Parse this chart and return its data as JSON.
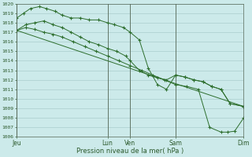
{
  "title": "Pression niveau de la mer( hPa )",
  "bg_color": "#cceaea",
  "grid_color": "#aacccc",
  "line_color": "#2d6e2d",
  "ylim": [
    1006,
    1020
  ],
  "yticks": [
    1006,
    1007,
    1008,
    1009,
    1010,
    1011,
    1012,
    1013,
    1014,
    1015,
    1016,
    1017,
    1018,
    1019,
    1020
  ],
  "x_day_labels": [
    {
      "label": "Jeu",
      "x": 0.0
    },
    {
      "label": "Lun",
      "x": 4.0
    },
    {
      "label": "Ven",
      "x": 5.0
    },
    {
      "label": "Sam",
      "x": 7.0
    },
    {
      "label": "Dim",
      "x": 10.0
    }
  ],
  "vlines": [
    0.0,
    4.0,
    5.0,
    7.0,
    10.0
  ],
  "line1": {
    "x": [
      0.0,
      0.3,
      0.6,
      1.0,
      1.3,
      1.7,
      2.0,
      2.4,
      2.8,
      3.2,
      3.6,
      4.0,
      4.3,
      4.7,
      5.0,
      5.4,
      5.8,
      6.2,
      6.6,
      7.0,
      7.4,
      7.8,
      8.2,
      8.6,
      9.0,
      9.4,
      10.0
    ],
    "y": [
      1018.5,
      1019.0,
      1019.5,
      1019.7,
      1019.5,
      1019.2,
      1018.8,
      1018.5,
      1018.5,
      1018.3,
      1018.3,
      1018.0,
      1017.8,
      1017.5,
      1017.0,
      1016.2,
      1013.2,
      1011.5,
      1011.0,
      1012.5,
      1012.3,
      1012.0,
      1011.8,
      1011.3,
      1011.0,
      1009.5,
      1009.2
    ]
  },
  "line2": {
    "x": [
      0.0,
      0.4,
      0.8,
      1.2,
      1.6,
      2.0,
      2.4,
      2.8,
      3.2,
      3.6,
      4.0,
      4.4,
      4.8,
      5.0,
      5.4,
      5.8,
      6.2,
      6.6,
      7.0,
      7.4,
      7.8,
      8.2,
      8.6,
      9.0,
      9.4,
      10.0
    ],
    "y": [
      1017.2,
      1017.8,
      1018.0,
      1018.2,
      1017.8,
      1017.5,
      1017.0,
      1016.5,
      1016.0,
      1015.7,
      1015.3,
      1015.0,
      1014.5,
      1014.0,
      1013.0,
      1012.5,
      1012.2,
      1012.0,
      1012.5,
      1012.3,
      1012.0,
      1011.8,
      1011.3,
      1011.0,
      1009.5,
      1009.2
    ]
  },
  "line3": {
    "x": [
      0.0,
      10.0
    ],
    "y": [
      1017.2,
      1009.2
    ]
  },
  "line4": {
    "x": [
      0.0,
      0.4,
      0.8,
      1.2,
      1.6,
      2.0,
      2.5,
      3.0,
      3.5,
      4.0,
      4.5,
      5.0,
      5.5,
      6.0,
      6.5,
      7.0,
      7.5,
      8.0,
      8.5,
      9.0,
      9.3,
      9.6,
      10.0
    ],
    "y": [
      1017.2,
      1017.5,
      1017.3,
      1017.0,
      1016.8,
      1016.5,
      1016.0,
      1015.5,
      1015.0,
      1014.5,
      1014.0,
      1013.5,
      1013.0,
      1012.5,
      1012.0,
      1011.5,
      1011.3,
      1011.0,
      1007.0,
      1006.5,
      1006.5,
      1006.6,
      1008.0
    ]
  },
  "xlim": [
    0.0,
    10.0
  ]
}
